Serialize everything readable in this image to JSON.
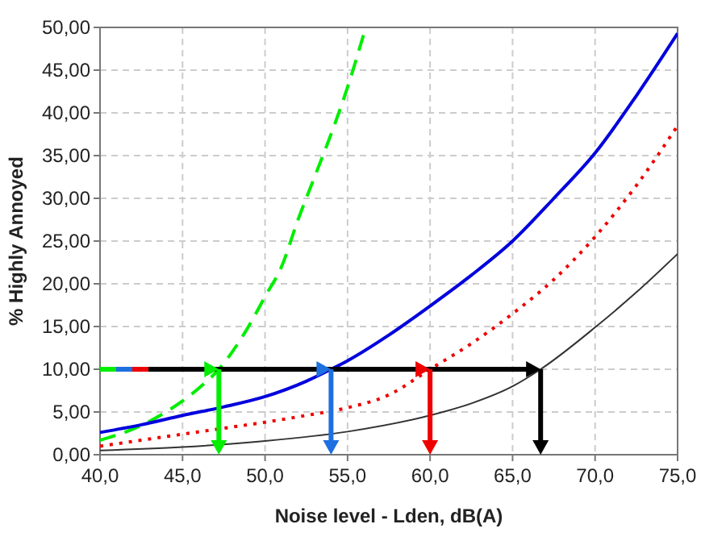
{
  "chart_data": {
    "type": "line",
    "xlabel": "Noise level - Lden, dB(A)",
    "ylabel": "% Highly Annoyed",
    "xlim": [
      40,
      75
    ],
    "ylim": [
      0,
      50
    ],
    "xticks": [
      {
        "value": 40,
        "label": "40,0"
      },
      {
        "value": 45,
        "label": "45,0"
      },
      {
        "value": 50,
        "label": "50,0"
      },
      {
        "value": 55,
        "label": "55,0"
      },
      {
        "value": 60,
        "label": "60,0"
      },
      {
        "value": 65,
        "label": "65,0"
      },
      {
        "value": 70,
        "label": "70,0"
      },
      {
        "value": 75,
        "label": "75,0"
      }
    ],
    "yticks": [
      {
        "value": 0,
        "label": "0,00"
      },
      {
        "value": 5,
        "label": "5,00"
      },
      {
        "value": 10,
        "label": "10,00"
      },
      {
        "value": 15,
        "label": "15,00"
      },
      {
        "value": 20,
        "label": "20,00"
      },
      {
        "value": 25,
        "label": "25,00"
      },
      {
        "value": 30,
        "label": "30,00"
      },
      {
        "value": 35,
        "label": "35,00"
      },
      {
        "value": 40,
        "label": "40,00"
      },
      {
        "value": 45,
        "label": "45,00"
      },
      {
        "value": 50,
        "label": "50,00"
      }
    ],
    "grid": true,
    "series": [
      {
        "color": "#00ee00",
        "line_style": "dashed",
        "x": [
          40,
          42,
          44,
          46,
          47.2,
          48,
          49,
          50,
          51,
          52,
          53,
          54,
          55,
          56.1
        ],
        "values": [
          1.7,
          3.0,
          5.0,
          7.8,
          10,
          12,
          15,
          18.5,
          22,
          27.5,
          32.5,
          37.5,
          43,
          50
        ]
      },
      {
        "color": "#0000dd",
        "line_style": "solid",
        "x": [
          40,
          42.5,
          45,
          47.5,
          50,
          52.5,
          54,
          55,
          57.5,
          60,
          62.5,
          65,
          67.5,
          70,
          72.5,
          75
        ],
        "values": [
          2.6,
          3.5,
          4.6,
          5.6,
          6.8,
          8.6,
          10,
          11,
          14,
          17.4,
          21,
          25,
          30,
          35.3,
          42,
          49.3
        ]
      },
      {
        "color": "#ee0000",
        "line_style": "dotted",
        "x": [
          40,
          42.5,
          45,
          47.5,
          50,
          52.5,
          55,
          57.5,
          60,
          62.5,
          65,
          67.5,
          70,
          72.5,
          75
        ],
        "values": [
          1.0,
          1.7,
          2.4,
          3.1,
          3.8,
          4.6,
          5.5,
          7.0,
          10,
          13,
          16.5,
          20.5,
          25.5,
          31.5,
          38.5
        ]
      },
      {
        "color": "#333333",
        "line_style": "solid",
        "x": [
          40,
          45,
          50,
          55,
          60,
          62.5,
          65,
          66.7,
          70,
          72.5,
          75
        ],
        "values": [
          0.5,
          0.9,
          1.6,
          2.7,
          4.6,
          6.0,
          8.0,
          10,
          14.9,
          19,
          23.5
        ]
      }
    ],
    "ref_lines": [
      {
        "axis": "y",
        "value": 10,
        "color": "#000000"
      },
      {
        "axis": "x",
        "value": 47.2,
        "color": "#00ee00"
      },
      {
        "axis": "x",
        "value": 54,
        "color": "#1e6fe0"
      },
      {
        "axis": "x",
        "value": 60,
        "color": "#ee0000"
      },
      {
        "axis": "x",
        "value": 66.7,
        "color": "#000000"
      }
    ]
  }
}
